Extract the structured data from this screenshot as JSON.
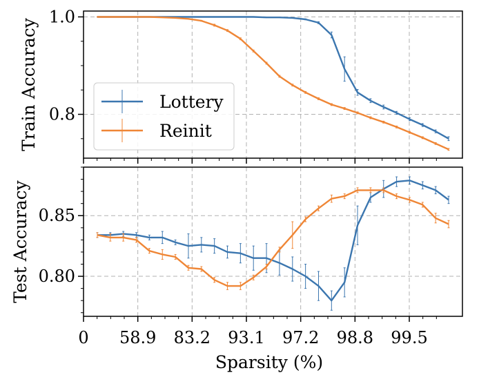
{
  "chart_data": {
    "type": "line",
    "xlabel": "Sparsity (%)",
    "x_tick_labels": [
      "0",
      "58.9",
      "83.2",
      "93.1",
      "97.2",
      "98.8",
      "99.5"
    ],
    "x_tick_indices": [
      0,
      4,
      8,
      12,
      16,
      20,
      24
    ],
    "n_points": 28,
    "colors": {
      "Lottery": "#3b76af",
      "Reinit": "#ef8636"
    },
    "legend": {
      "placement": "lower-left",
      "entries": [
        "Lottery",
        "Reinit"
      ]
    },
    "panels": [
      {
        "id": "train",
        "ylabel": "Train Accuracy",
        "ylim": [
          0.71,
          1.012
        ],
        "yticks": [
          0.8,
          1.0
        ],
        "ytick_labels": [
          "0.8",
          "1.0"
        ],
        "series": [
          {
            "name": "Lottery",
            "values": [
              1.0,
              1.0,
              1.0,
              1.0,
              1.0,
              1.0,
              1.0,
              1.0,
              1.0,
              1.0,
              1.0,
              1.0,
              1.0,
              0.999,
              0.999,
              0.998,
              0.995,
              0.988,
              0.963,
              0.893,
              0.845,
              0.828,
              0.815,
              0.803,
              0.79,
              0.778,
              0.765,
              0.75
            ],
            "errors": [
              0,
              0,
              0,
              0,
              0,
              0,
              0,
              0,
              0,
              0,
              0,
              0,
              0,
              0,
              0,
              0,
              0.001,
              0.002,
              0.006,
              0.025,
              0.006,
              0.004,
              0.004,
              0.003,
              0.003,
              0.003,
              0.003,
              0.004
            ]
          },
          {
            "name": "Reinit",
            "values": [
              1.0,
              1.0,
              1.0,
              1.0,
              1.0,
              0.999,
              0.998,
              0.996,
              0.992,
              0.983,
              0.972,
              0.955,
              0.93,
              0.905,
              0.878,
              0.86,
              0.845,
              0.832,
              0.82,
              0.812,
              0.803,
              0.793,
              0.784,
              0.774,
              0.763,
              0.752,
              0.74,
              0.728
            ],
            "errors": [
              0,
              0,
              0,
              0,
              0,
              0,
              0,
              0,
              0.001,
              0.002,
              0.002,
              0.002,
              0.002,
              0.002,
              0.002,
              0.002,
              0.002,
              0.002,
              0.002,
              0.002,
              0.002,
              0.002,
              0.002,
              0.002,
              0.002,
              0.002,
              0.002,
              0.002
            ]
          }
        ]
      },
      {
        "id": "test",
        "ylabel": "Test Accuracy",
        "ylim": [
          0.767,
          0.89
        ],
        "yticks": [
          0.8,
          0.85
        ],
        "ytick_labels": [
          "0.80",
          "0.85"
        ],
        "series": [
          {
            "name": "Lottery",
            "values": [
              0.834,
              0.834,
              0.835,
              0.834,
              0.832,
              0.832,
              0.828,
              0.825,
              0.826,
              0.825,
              0.82,
              0.819,
              0.815,
              0.815,
              0.811,
              0.806,
              0.8,
              0.792,
              0.78,
              0.795,
              0.842,
              0.865,
              0.872,
              0.878,
              0.879,
              0.875,
              0.871,
              0.863
            ],
            "errors": [
              0.002,
              0.002,
              0.002,
              0.002,
              0.002,
              0.005,
              0.002,
              0.01,
              0.006,
              0.006,
              0.005,
              0.008,
              0.01,
              0.012,
              0.01,
              0.01,
              0.01,
              0.012,
              0.008,
              0.012,
              0.016,
              0.004,
              0.007,
              0.004,
              0.003,
              0.003,
              0.003,
              0.003
            ]
          },
          {
            "name": "Reinit",
            "values": [
              0.834,
              0.832,
              0.832,
              0.83,
              0.821,
              0.818,
              0.816,
              0.807,
              0.806,
              0.797,
              0.792,
              0.792,
              0.799,
              0.808,
              0.822,
              0.834,
              0.847,
              0.856,
              0.864,
              0.866,
              0.871,
              0.871,
              0.871,
              0.866,
              0.863,
              0.859,
              0.848,
              0.843
            ],
            "errors": [
              0.002,
              0.003,
              0.003,
              0.002,
              0.002,
              0.004,
              0.002,
              0.002,
              0.002,
              0.002,
              0.003,
              0.003,
              0.002,
              0.002,
              0.002,
              0.011,
              0.002,
              0.002,
              0.003,
              0.002,
              0.002,
              0.002,
              0.002,
              0.002,
              0.002,
              0.002,
              0.004,
              0.003
            ]
          }
        ]
      }
    ]
  }
}
